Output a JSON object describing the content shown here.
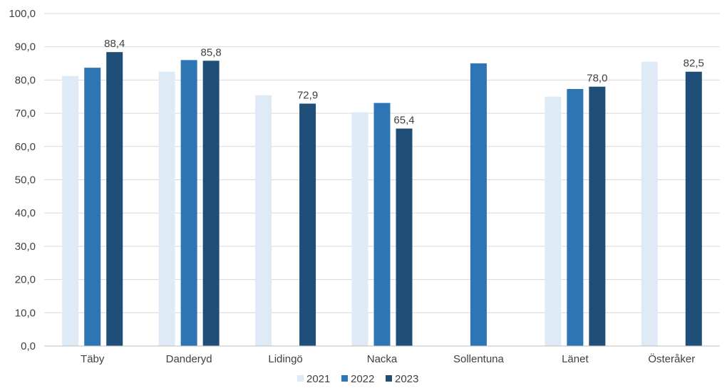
{
  "chart_data": {
    "type": "bar",
    "title": "",
    "xlabel": "",
    "ylabel": "",
    "ylim": [
      0,
      100
    ],
    "yticks": [
      "0,0",
      "10,0",
      "20,0",
      "30,0",
      "40,0",
      "50,0",
      "60,0",
      "70,0",
      "80,0",
      "90,0",
      "100,0"
    ],
    "grid": true,
    "legend_position": "bottom",
    "categories": [
      "Täby",
      "Danderyd",
      "Lidingö",
      "Nacka",
      "Sollentuna",
      "Länet",
      "Österåker"
    ],
    "series": [
      {
        "name": "2021",
        "color": "#deeaf6",
        "values": [
          81.2,
          82.5,
          75.4,
          70.3,
          null,
          75.0,
          85.5
        ]
      },
      {
        "name": "2022",
        "color": "#2e75b6",
        "values": [
          83.7,
          86.0,
          null,
          73.1,
          85.0,
          77.3,
          null
        ]
      },
      {
        "name": "2023",
        "color": "#1f4e79",
        "values": [
          88.4,
          85.8,
          72.9,
          65.4,
          null,
          78.0,
          82.5
        ]
      }
    ],
    "data_labels": [
      {
        "series": "2023",
        "category": "Täby",
        "text": "88,4"
      },
      {
        "series": "2023",
        "category": "Danderyd",
        "text": "85,8"
      },
      {
        "series": "2023",
        "category": "Lidingö",
        "text": "72,9"
      },
      {
        "series": "2023",
        "category": "Nacka",
        "text": "65,4"
      },
      {
        "series": "2023",
        "category": "Länet",
        "text": "78,0"
      },
      {
        "series": "2023",
        "category": "Österåker",
        "text": "82,5"
      }
    ]
  }
}
